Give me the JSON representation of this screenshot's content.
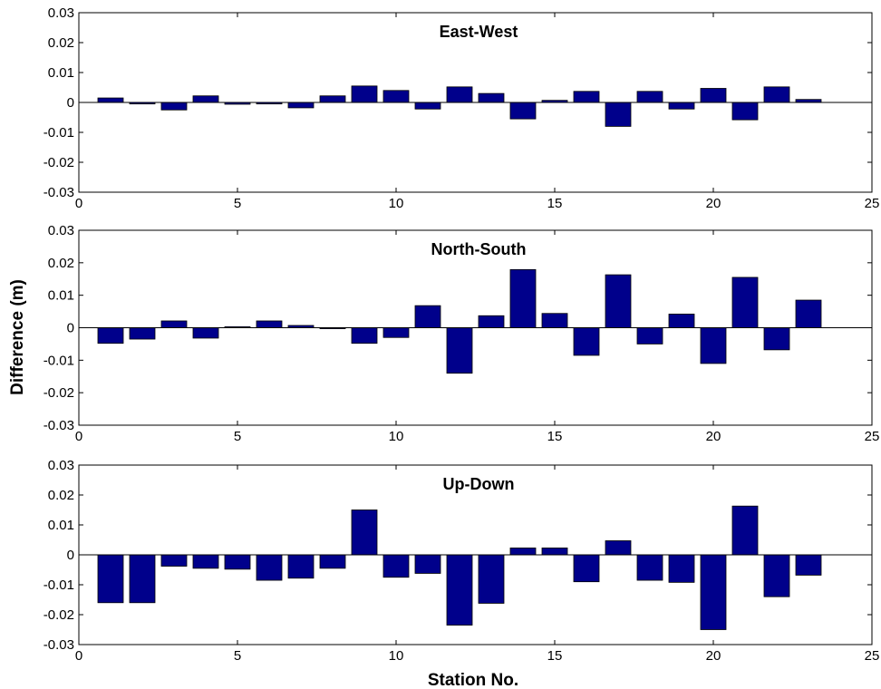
{
  "chart_data": [
    {
      "type": "bar",
      "title": "East-West",
      "xlim": [
        0,
        25
      ],
      "ylim": [
        -0.03,
        0.03
      ],
      "xticks": [
        "0",
        "5",
        "10",
        "15",
        "20",
        "25"
      ],
      "yticks": [
        "0.03",
        "0.02",
        "0.01",
        "0",
        "-0.01",
        "-0.02",
        "-0.03"
      ],
      "x": [
        1,
        2,
        3,
        4,
        5,
        6,
        7,
        8,
        9,
        10,
        11,
        12,
        13,
        14,
        15,
        16,
        17,
        18,
        19,
        20,
        21,
        22,
        23
      ],
      "values": [
        0.0015,
        -0.0005,
        -0.0025,
        0.0022,
        -0.0006,
        -0.0005,
        -0.0018,
        0.0022,
        0.0055,
        0.004,
        -0.0022,
        0.0052,
        0.003,
        -0.0055,
        0.0007,
        0.0037,
        -0.008,
        0.0037,
        -0.0022,
        0.0047,
        -0.0058,
        0.0052,
        0.001
      ],
      "bar_color": "#00008B"
    },
    {
      "type": "bar",
      "title": "North-South",
      "xlim": [
        0,
        25
      ],
      "ylim": [
        -0.03,
        0.03
      ],
      "xticks": [
        "0",
        "5",
        "10",
        "15",
        "20",
        "25"
      ],
      "yticks": [
        "0.03",
        "0.02",
        "0.01",
        "0",
        "-0.01",
        "-0.02",
        "-0.03"
      ],
      "x": [
        1,
        2,
        3,
        4,
        5,
        6,
        7,
        8,
        9,
        10,
        11,
        12,
        13,
        14,
        15,
        16,
        17,
        18,
        19,
        20,
        21,
        22,
        23
      ],
      "values": [
        -0.0048,
        -0.0035,
        0.0021,
        -0.0032,
        0.0003,
        0.0021,
        0.0007,
        -0.0003,
        -0.0048,
        -0.003,
        0.0068,
        -0.014,
        0.0037,
        0.0179,
        0.0044,
        -0.0085,
        0.0163,
        -0.005,
        0.0042,
        -0.011,
        0.0155,
        -0.0068,
        0.0085
      ],
      "bar_color": "#00008B"
    },
    {
      "type": "bar",
      "title": "Up-Down",
      "xlim": [
        0,
        25
      ],
      "ylim": [
        -0.03,
        0.03
      ],
      "xticks": [
        "0",
        "5",
        "10",
        "15",
        "20",
        "25"
      ],
      "yticks": [
        "0.03",
        "0.02",
        "0.01",
        "0",
        "-0.01",
        "-0.02",
        "-0.03"
      ],
      "x": [
        1,
        2,
        3,
        4,
        5,
        6,
        7,
        8,
        9,
        10,
        11,
        12,
        13,
        14,
        15,
        16,
        17,
        18,
        19,
        20,
        21,
        22,
        23
      ],
      "values": [
        -0.016,
        -0.016,
        -0.0038,
        -0.0045,
        -0.0048,
        -0.0085,
        -0.0078,
        -0.0045,
        0.015,
        -0.0075,
        -0.0062,
        -0.0235,
        -0.0162,
        0.0023,
        0.0023,
        -0.009,
        0.0047,
        -0.0085,
        -0.0092,
        -0.025,
        0.0163,
        -0.014,
        -0.0068
      ],
      "bar_color": "#00008B"
    }
  ],
  "labels": {
    "ylabel": "Difference (m)",
    "xlabel": "Station No."
  }
}
